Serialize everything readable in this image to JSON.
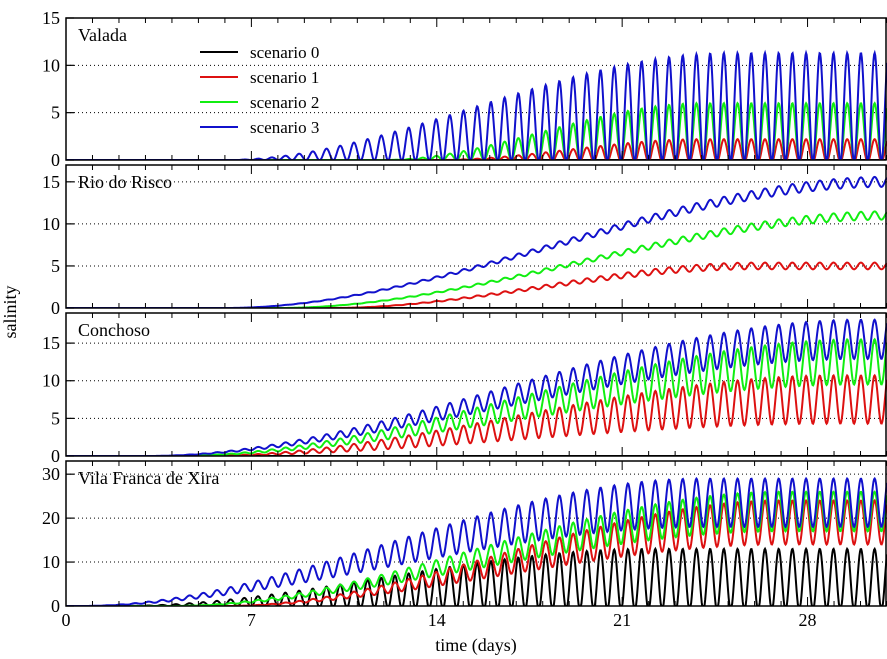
{
  "chart_data": {
    "type": "line",
    "xlabel": "time (days)",
    "ylabel": "salinity",
    "xlim": [
      0,
      31
    ],
    "xticks": [
      0,
      7,
      14,
      21,
      28
    ],
    "grid": "horizontal dotted",
    "legend_placement": "top-left of first panel",
    "series_names": [
      "scenario 0",
      "scenario 1",
      "scenario 2",
      "scenario 3"
    ],
    "colors": {
      "scenario 0": "#000000",
      "scenario 1": "#dd1111",
      "scenario 2": "#11ee11",
      "scenario 3": "#1111cc"
    },
    "panels": [
      {
        "title": "Valada",
        "ylim": [
          0,
          15
        ],
        "yticks": [
          0,
          5,
          10,
          15
        ],
        "series": [
          {
            "name": "scenario 0",
            "start": 31,
            "full": 31,
            "mean_end": 0.0,
            "amp_end": 0.0
          },
          {
            "name": "scenario 1",
            "start": 14,
            "full": 24,
            "mean_end": 1.0,
            "amp_end": 1.2
          },
          {
            "name": "scenario 2",
            "start": 12,
            "full": 24,
            "mean_end": 3.0,
            "amp_end": 3.0
          },
          {
            "name": "scenario 3",
            "start": 6,
            "full": 25,
            "mean_end": 5.5,
            "amp_end": 5.8
          }
        ]
      },
      {
        "title": "Rio do Risco",
        "ylim": [
          0,
          17
        ],
        "yticks": [
          0,
          5,
          10,
          15
        ],
        "series": [
          {
            "name": "scenario 0",
            "start": 31,
            "full": 31,
            "mean_end": 0.0,
            "amp_end": 0.0
          },
          {
            "name": "scenario 1",
            "start": 10,
            "full": 26,
            "mean_end": 5.0,
            "amp_end": 0.4
          },
          {
            "name": "scenario 2",
            "start": 8,
            "full": 31,
            "mean_end": 11.0,
            "amp_end": 0.5
          },
          {
            "name": "scenario 3",
            "start": 6,
            "full": 31,
            "mean_end": 15.0,
            "amp_end": 0.6
          }
        ]
      },
      {
        "title": "Conchoso",
        "ylim": [
          0,
          19
        ],
        "yticks": [
          0,
          5,
          10,
          15
        ],
        "series": [
          {
            "name": "scenario 0",
            "start": 31,
            "full": 31,
            "mean_end": 0.0,
            "amp_end": 0.0
          },
          {
            "name": "scenario 1",
            "start": 5,
            "full": 29,
            "mean_end": 7.5,
            "amp_end": 3.2
          },
          {
            "name": "scenario 2",
            "start": 4,
            "full": 30,
            "mean_end": 12.5,
            "amp_end": 3.0
          },
          {
            "name": "scenario 3",
            "start": 3,
            "full": 30,
            "mean_end": 15.5,
            "amp_end": 2.6
          }
        ]
      },
      {
        "title": "Vila Franca de Xira",
        "ylim": [
          0,
          33
        ],
        "yticks": [
          0,
          10,
          20,
          30
        ],
        "series": [
          {
            "name": "scenario 0",
            "start": 2,
            "full": 22,
            "mean_end": 6.0,
            "amp_end": 7.0
          },
          {
            "name": "scenario 1",
            "start": 6,
            "full": 27,
            "mean_end": 19.0,
            "amp_end": 5.0
          },
          {
            "name": "scenario 2",
            "start": 4,
            "full": 27,
            "mean_end": 21.5,
            "amp_end": 4.5
          },
          {
            "name": "scenario 3",
            "start": 0.5,
            "full": 24,
            "mean_end": 23.5,
            "amp_end": 5.5
          }
        ]
      }
    ]
  }
}
